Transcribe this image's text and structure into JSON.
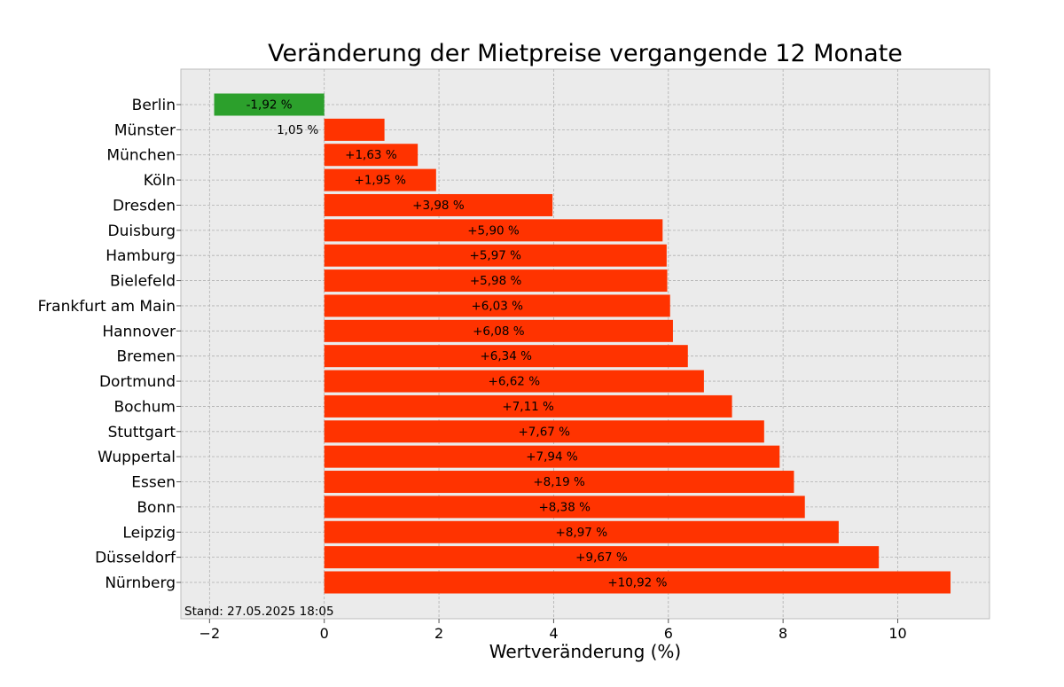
{
  "chart_data": {
    "type": "bar",
    "orientation": "horizontal",
    "title": "Veränderung der Mietpreise vergangende 12 Monate",
    "xlabel": "Wertveränderung (%)",
    "ylabel": "",
    "xlim": [
      -2.5,
      11.6
    ],
    "xticks": [
      -2,
      0,
      2,
      4,
      6,
      8,
      10
    ],
    "xtick_labels": [
      "−2",
      "0",
      "2",
      "4",
      "6",
      "8",
      "10"
    ],
    "grid": true,
    "categories": [
      "Berlin",
      "Münster",
      "München",
      "Köln",
      "Dresden",
      "Duisburg",
      "Hamburg",
      "Bielefeld",
      "Frankfurt am Main",
      "Hannover",
      "Bremen",
      "Dortmund",
      "Bochum",
      "Stuttgart",
      "Wuppertal",
      "Essen",
      "Bonn",
      "Leipzig",
      "Düsseldorf",
      "Nürnberg"
    ],
    "values": [
      -1.92,
      1.05,
      1.63,
      1.95,
      3.98,
      5.9,
      5.97,
      5.98,
      6.03,
      6.08,
      6.34,
      6.62,
      7.11,
      7.67,
      7.94,
      8.19,
      8.38,
      8.97,
      9.67,
      10.92
    ],
    "data_labels": [
      "-1,92 %",
      "1,05 %",
      "+1,63 %",
      "+1,95 %",
      "+3,98 %",
      "+5,90 %",
      "+5,97 %",
      "+5,98 %",
      "+6,03 %",
      "+6,08 %",
      "+6,34 %",
      "+6,62 %",
      "+7,11 %",
      "+7,67 %",
      "+7,94 %",
      "+8,19 %",
      "+8,38 %",
      "+8,97 %",
      "+9,67 %",
      "+10,92 %"
    ],
    "colors": {
      "positive": "#ff3300",
      "negative": "#2ca02c",
      "background": "#ebebeb",
      "grid": "#b0b0b0"
    },
    "annotation": "Stand: 27.05.2025 18:05"
  }
}
